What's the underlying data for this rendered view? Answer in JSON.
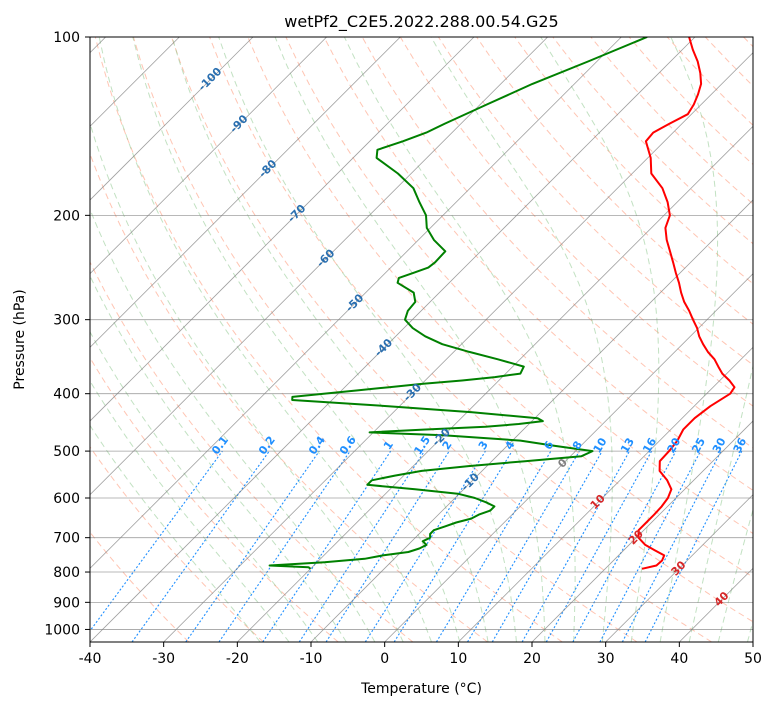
{
  "chart_data": {
    "type": "skew-t",
    "title": "wetPf2_C2E5.2022.288.00.54.G25",
    "xlabel": "Temperature (°C)",
    "ylabel": "Pressure (hPa)",
    "xlim": [
      -40,
      50
    ],
    "ylim": [
      1050,
      100
    ],
    "y_scale": "log",
    "x_ticks": [
      -40,
      -30,
      -20,
      -10,
      0,
      10,
      20,
      30,
      40,
      50
    ],
    "y_ticks": [
      100,
      200,
      300,
      400,
      500,
      600,
      700,
      800,
      900,
      1000
    ],
    "grid": true,
    "colors": {
      "temperature": "#ff0000",
      "dewpoint": "#008000",
      "dry_adiabats": "#ff9f80",
      "moist_adiabats": "#90c890",
      "mixing_ratio": "#1f8fff",
      "isotherms": "#808080"
    },
    "series": [
      {
        "role": "temperature",
        "p": [
          790,
          780,
          765,
          750,
          735,
          720,
          700,
          680,
          660,
          640,
          620,
          600,
          580,
          560,
          540,
          520,
          500,
          480,
          460,
          440,
          420,
          400,
          390,
          380,
          370,
          360,
          350,
          340,
          330,
          320,
          310,
          300,
          290,
          280,
          270,
          260,
          250,
          240,
          230,
          220,
          210,
          200,
          190,
          180,
          170,
          160,
          150,
          145,
          140,
          135,
          130,
          125,
          120,
          115,
          110,
          105,
          100
        ],
        "t": [
          25,
          26.5,
          26.6,
          26.2,
          24.2,
          22.2,
          20.3,
          19.3,
          19.3,
          19.3,
          19.2,
          18.9,
          18.2,
          16.4,
          14.1,
          12.8,
          12.7,
          12.4,
          11.7,
          11.7,
          12.2,
          13.2,
          12.9,
          11.3,
          9.4,
          7.9,
          6.4,
          4.5,
          2.8,
          1.2,
          -0.2,
          -1.9,
          -3.6,
          -5.5,
          -7.2,
          -8.8,
          -10.6,
          -12.4,
          -14.3,
          -16.3,
          -18.1,
          -19.2,
          -21.3,
          -23.9,
          -27.4,
          -29.6,
          -32.5,
          -32.7,
          -31.7,
          -30.5,
          -31.0,
          -31.8,
          -32.8,
          -34.4,
          -36.3,
          -38.6,
          -40.8
        ]
      },
      {
        "role": "dewpoint",
        "p": [
          790,
          785,
          780,
          770,
          760,
          750,
          740,
          730,
          720,
          710,
          700,
          690,
          680,
          670,
          660,
          650,
          640,
          630,
          620,
          610,
          600,
          590,
          580,
          570,
          560,
          550,
          540,
          530,
          520,
          510,
          500,
          490,
          480,
          470,
          465,
          460,
          455,
          450,
          445,
          440,
          430,
          420,
          410,
          405,
          400,
          395,
          390,
          385,
          380,
          375,
          370,
          360,
          350,
          340,
          330,
          320,
          310,
          300,
          290,
          280,
          270,
          260,
          255,
          250,
          245,
          240,
          230,
          220,
          210,
          200,
          190,
          180,
          170,
          160,
          155,
          150,
          145,
          140,
          130,
          120,
          110,
          100
        ],
        "td": [
          -20,
          -20.5,
          -26,
          -19,
          -14,
          -12,
          -9,
          -8,
          -7.5,
          -8.5,
          -8,
          -8.5,
          -8.5,
          -7.5,
          -6.5,
          -5,
          -4.5,
          -3.5,
          -3.5,
          -5.2,
          -7.3,
          -10.2,
          -16.6,
          -23.7,
          -23.7,
          -21.2,
          -18.2,
          -12.5,
          -5.5,
          1.5,
          2.3,
          -3.5,
          -8.9,
          -20.1,
          -30.5,
          -23.6,
          -15.5,
          -11.4,
          -8.5,
          -9.6,
          -19.3,
          -31.5,
          -45.4,
          -45.8,
          -42.0,
          -38.0,
          -34.0,
          -30.0,
          -25.0,
          -21.0,
          -18.0,
          -18.5,
          -23.0,
          -27.9,
          -32.6,
          -36.0,
          -38.8,
          -41.0,
          -41.8,
          -42.0,
          -43.5,
          -47.0,
          -47.5,
          -46.2,
          -44.9,
          -44.7,
          -44.8,
          -47.9,
          -50.5,
          -52.3,
          -55.0,
          -57.7,
          -61.8,
          -66.8,
          -67.8,
          -65.5,
          -63.5,
          -62.2,
          -59.1,
          -55.7,
          -51.2,
          -46.5
        ]
      }
    ],
    "mixing_ratio_labels": [
      "0.1",
      "0.2",
      "0.4",
      "0.6",
      "1",
      "1.5",
      "2",
      "3",
      "4",
      "6",
      "8",
      "10",
      "13",
      "16",
      "20",
      "25",
      "30",
      "36"
    ],
    "dry_adiabat_labels": [
      "-100",
      "-90",
      "-80",
      "-70",
      "-60",
      "-50",
      "-40",
      "-30",
      "-20",
      "-10"
    ],
    "moist_adiabat_labels": [
      "0",
      "10",
      "20",
      "30",
      "40"
    ],
    "mixing_ratio_values": [
      0.1,
      0.2,
      0.4,
      0.6,
      1,
      1.5,
      2,
      3,
      4,
      6,
      8,
      10,
      13,
      16,
      20,
      25,
      30,
      36
    ],
    "dry_adiabat_values": [
      -100,
      -90,
      -80,
      -70,
      -60,
      -50,
      -40,
      -30,
      -20,
      -10
    ],
    "moist_adiabat_values": [
      0,
      10,
      20,
      30,
      40
    ]
  }
}
